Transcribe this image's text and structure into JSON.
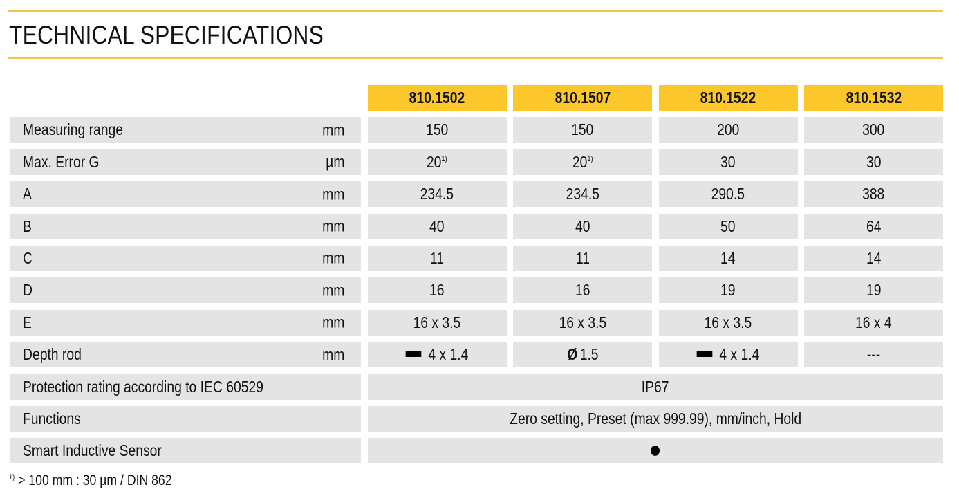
{
  "title": "TECHNICAL SPECIFICATIONS",
  "colors": {
    "accent": "#fcc72a",
    "rule": "#f5c842",
    "row_bg": "#e4e4e4"
  },
  "models": [
    "810.1502",
    "810.1507",
    "810.1522",
    "810.1532"
  ],
  "rows": [
    {
      "label": "Measuring range",
      "unit": "mm",
      "values": [
        "150",
        "150",
        "200",
        "300"
      ]
    },
    {
      "label": "Max. Error G",
      "unit": "µm",
      "values": [
        "20",
        "20",
        "30",
        "30"
      ],
      "footnote_refs": [
        "1)",
        "1)",
        "",
        ""
      ]
    },
    {
      "label": "A",
      "unit": "mm",
      "values": [
        "234.5",
        "234.5",
        "290.5",
        "388"
      ]
    },
    {
      "label": "B",
      "unit": "mm",
      "values": [
        "40",
        "40",
        "50",
        "64"
      ]
    },
    {
      "label": "C",
      "unit": "mm",
      "values": [
        "11",
        "11",
        "14",
        "14"
      ]
    },
    {
      "label": "D",
      "unit": "mm",
      "values": [
        "16",
        "16",
        "19",
        "19"
      ]
    },
    {
      "label": "E",
      "unit": "mm",
      "values": [
        "16 x 3.5",
        "16 x 3.5",
        "16 x 3.5",
        "16 x 4"
      ]
    },
    {
      "label": "Depth rod",
      "unit": "mm",
      "values": [
        "4 x 1.4",
        "1.5",
        "4 x 1.4",
        "---"
      ],
      "symbols": [
        "flat-bar-icon",
        "Ø",
        "flat-bar-icon",
        ""
      ]
    },
    {
      "label": "Protection rating according to IEC 60529",
      "unit": "",
      "span_value": "IP67"
    },
    {
      "label": "Functions",
      "unit": "",
      "span_value": "Zero setting, Preset (max 999.99), mm/inch, Hold"
    },
    {
      "label": "Smart Inductive Sensor",
      "unit": "",
      "span_value": "",
      "span_symbol": "filled-dot-icon"
    }
  ],
  "footnote": {
    "mark": "1)",
    "text": "> 100 mm : 30 µm / DIN 862"
  }
}
